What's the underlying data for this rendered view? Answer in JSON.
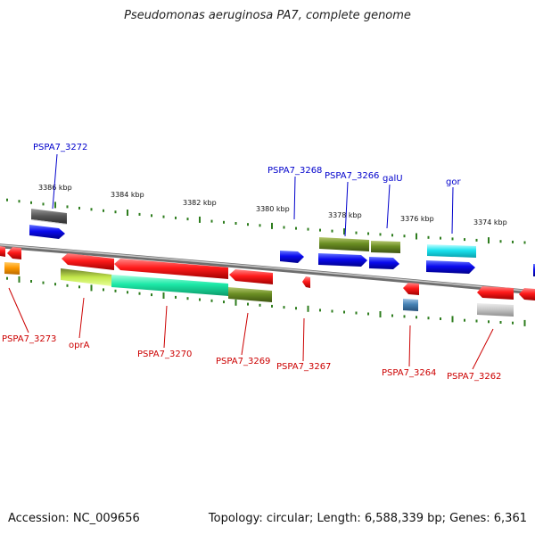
{
  "title": "Pseudomonas aeruginosa PA7, complete genome",
  "footer": {
    "accession": "Accession: NC_009656",
    "summary": "Topology: circular; Length: 6,588,339 bp; Genes: 6,361"
  },
  "ruler_ticks": [
    "3386 kbp",
    "3384 kbp",
    "3382 kbp",
    "3380 kbp",
    "3378 kbp",
    "3376 kbp",
    "3374 kbp"
  ],
  "top_labels": [
    "PSPA7_3272",
    "PSPA7_3268",
    "PSPA7_3266",
    "galU",
    "gor"
  ],
  "bottom_labels": [
    "PSPA7_3273",
    "oprA",
    "PSPA7_3270",
    "PSPA7_3269",
    "PSPA7_3267",
    "PSPA7_3264",
    "PSPA7_3262"
  ],
  "colors": {
    "forward_label": "#0000cc",
    "reverse_label": "#cc0000",
    "backbone": "#8a8a8a",
    "ruler_tick": "#2e7d1e"
  }
}
